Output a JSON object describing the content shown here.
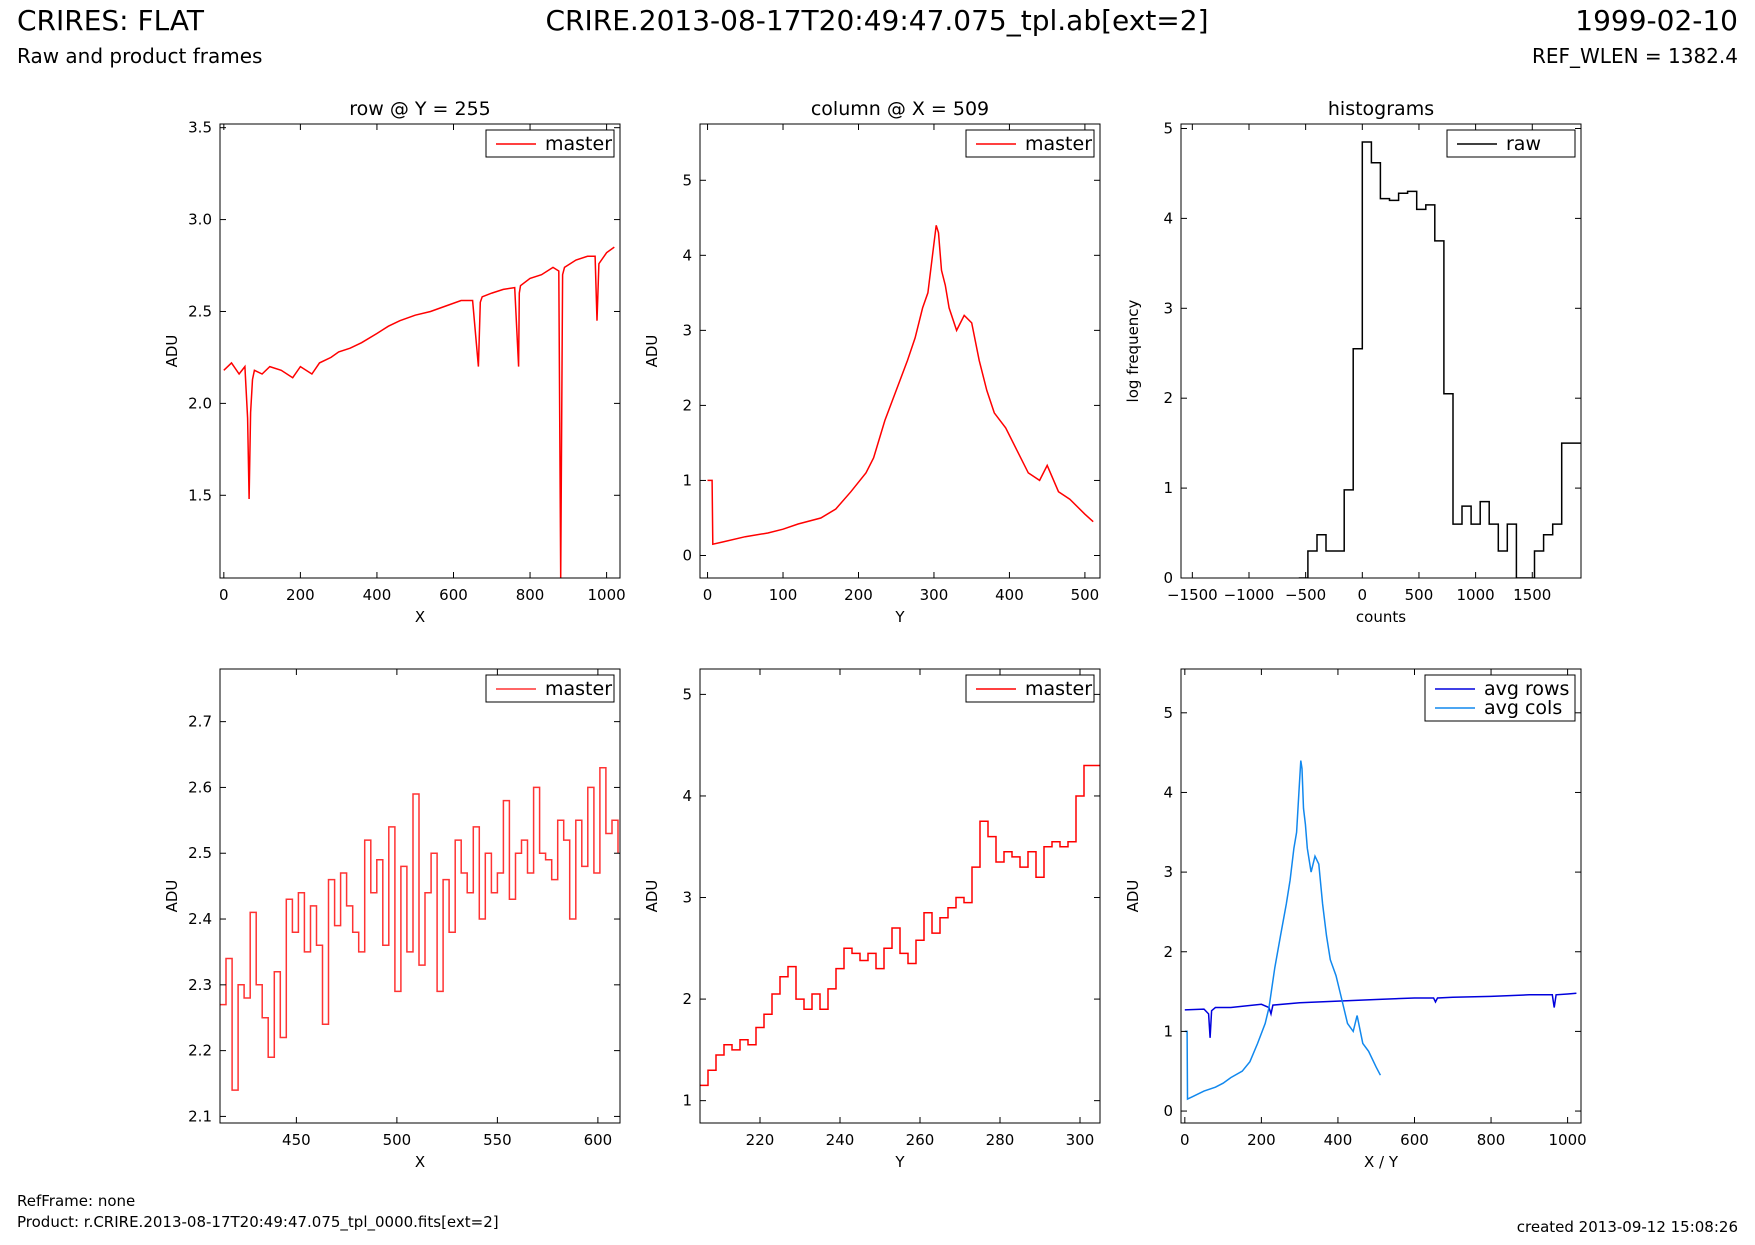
{
  "header": {
    "left_title": "CRIRES: FLAT",
    "left_subtitle": "Raw and product frames",
    "center_title": "CRIRE.2013-08-17T20:49:47.075_tpl.ab[ext=2]",
    "right_title": "1999-02-10",
    "right_subtitle": "REF_WLEN = 1382.4"
  },
  "footer": {
    "refframe": "RefFrame: none",
    "product": "Product: r.CRIRE.2013-08-17T20:49:47.075_tpl_0000.fits[ext=2]",
    "created": "created 2013-09-12 15:08:26"
  },
  "chart_data": [
    {
      "id": "row-full",
      "type": "line",
      "title": "row @ Y = 255",
      "xlabel": "X",
      "ylabel": "ADU",
      "xlim": [
        -10,
        1035
      ],
      "ylim": [
        1.05,
        3.52
      ],
      "xticks": [
        0,
        200,
        400,
        600,
        800,
        1000
      ],
      "yticks": [
        1.5,
        2.0,
        2.5,
        3.0,
        3.5
      ],
      "ytick_format": 1,
      "legend": "top-right",
      "series": [
        {
          "name": "master",
          "color": "#ff0000",
          "x": [
            0,
            20,
            40,
            55,
            62,
            66,
            70,
            75,
            80,
            100,
            120,
            150,
            180,
            200,
            230,
            250,
            280,
            300,
            330,
            360,
            400,
            430,
            460,
            500,
            540,
            580,
            620,
            650,
            665,
            670,
            675,
            700,
            730,
            760,
            770,
            772,
            775,
            800,
            830,
            860,
            875,
            880,
            885,
            890,
            920,
            950,
            970,
            975,
            980,
            1000,
            1020
          ],
          "y": [
            2.18,
            2.22,
            2.16,
            2.2,
            1.92,
            1.48,
            1.95,
            2.13,
            2.18,
            2.16,
            2.2,
            2.18,
            2.14,
            2.2,
            2.16,
            2.22,
            2.25,
            2.28,
            2.3,
            2.33,
            2.38,
            2.42,
            2.45,
            2.48,
            2.5,
            2.53,
            2.56,
            2.56,
            2.2,
            2.55,
            2.58,
            2.6,
            2.62,
            2.63,
            2.2,
            2.6,
            2.64,
            2.68,
            2.7,
            2.74,
            2.72,
            1.05,
            2.7,
            2.74,
            2.78,
            2.8,
            2.8,
            2.45,
            2.76,
            2.82,
            2.85
          ]
        }
      ]
    },
    {
      "id": "column-full",
      "type": "line",
      "title": "column @ X = 509",
      "xlabel": "Y",
      "ylabel": "ADU",
      "xlim": [
        -10,
        520
      ],
      "ylim": [
        -0.3,
        5.75
      ],
      "xticks": [
        0,
        100,
        200,
        300,
        400,
        500
      ],
      "yticks": [
        0,
        1,
        2,
        3,
        4,
        5
      ],
      "ytick_format": 0,
      "legend": "top-right",
      "series": [
        {
          "name": "master",
          "color": "#ff0000",
          "x": [
            0,
            6,
            7,
            20,
            50,
            80,
            100,
            120,
            150,
            170,
            190,
            210,
            220,
            235,
            250,
            265,
            275,
            285,
            292,
            298,
            303,
            306,
            310,
            315,
            320,
            330,
            340,
            350,
            360,
            370,
            380,
            395,
            410,
            425,
            440,
            450,
            465,
            480,
            500,
            511
          ],
          "y": [
            1.0,
            1.0,
            0.15,
            0.18,
            0.25,
            0.3,
            0.35,
            0.42,
            0.5,
            0.62,
            0.85,
            1.1,
            1.3,
            1.8,
            2.2,
            2.6,
            2.9,
            3.3,
            3.5,
            4.0,
            4.4,
            4.3,
            3.8,
            3.6,
            3.3,
            3.0,
            3.2,
            3.1,
            2.6,
            2.2,
            1.9,
            1.7,
            1.4,
            1.1,
            1.0,
            1.2,
            0.85,
            0.75,
            0.55,
            0.45
          ]
        }
      ]
    },
    {
      "id": "histograms",
      "type": "line",
      "title": "histograms",
      "xlabel": "counts",
      "ylabel": "log frequency",
      "xlim": [
        -1600,
        1930
      ],
      "ylim": [
        0,
        5.05
      ],
      "xticks": [
        -1500,
        -1000,
        -500,
        0,
        500,
        1000,
        1500
      ],
      "yticks": [
        0,
        1,
        2,
        3,
        4,
        5
      ],
      "ytick_format": 0,
      "legend": "top-right",
      "step": true,
      "series": [
        {
          "name": "raw",
          "color": "#000000",
          "x": [
            -560,
            -480,
            -400,
            -320,
            -240,
            -160,
            -80,
            0,
            80,
            160,
            240,
            320,
            400,
            480,
            560,
            640,
            720,
            800,
            880,
            960,
            1040,
            1120,
            1200,
            1280,
            1360,
            1440,
            1520,
            1600,
            1680,
            1760,
            1840,
            1930
          ],
          "y": [
            0.0,
            0.3,
            0.48,
            0.3,
            0.3,
            0.98,
            2.55,
            4.85,
            4.62,
            4.22,
            4.2,
            4.28,
            4.3,
            4.1,
            4.15,
            3.75,
            2.05,
            0.6,
            0.8,
            0.6,
            0.85,
            0.6,
            0.3,
            0.6,
            0.0,
            0.0,
            0.3,
            0.48,
            0.6,
            1.5,
            1.5,
            1.5
          ]
        }
      ]
    },
    {
      "id": "row-zoom",
      "type": "line",
      "title": "",
      "xlabel": "X",
      "ylabel": "ADU",
      "xlim": [
        412,
        611
      ],
      "ylim": [
        2.09,
        2.78
      ],
      "xticks": [
        450,
        500,
        550,
        600
      ],
      "yticks": [
        2.1,
        2.2,
        2.3,
        2.4,
        2.5,
        2.6,
        2.7
      ],
      "ytick_format": 1,
      "legend": "top-right",
      "step": true,
      "series": [
        {
          "name": "master",
          "color": "#ff3333",
          "x": [
            412,
            415,
            418,
            421,
            424,
            427,
            430,
            433,
            436,
            439,
            442,
            445,
            448,
            451,
            454,
            457,
            460,
            463,
            466,
            469,
            472,
            475,
            478,
            481,
            484,
            487,
            490,
            493,
            496,
            499,
            502,
            505,
            508,
            511,
            514,
            517,
            520,
            523,
            526,
            529,
            532,
            535,
            538,
            541,
            544,
            547,
            550,
            553,
            556,
            559,
            562,
            565,
            568,
            571,
            574,
            577,
            580,
            583,
            586,
            589,
            592,
            595,
            598,
            601,
            604,
            607,
            610
          ],
          "y": [
            2.27,
            2.34,
            2.14,
            2.3,
            2.28,
            2.41,
            2.3,
            2.25,
            2.19,
            2.32,
            2.22,
            2.43,
            2.38,
            2.44,
            2.35,
            2.42,
            2.36,
            2.24,
            2.46,
            2.39,
            2.47,
            2.42,
            2.38,
            2.35,
            2.52,
            2.44,
            2.49,
            2.36,
            2.54,
            2.29,
            2.48,
            2.35,
            2.59,
            2.33,
            2.44,
            2.5,
            2.29,
            2.46,
            2.38,
            2.52,
            2.47,
            2.44,
            2.54,
            2.4,
            2.5,
            2.44,
            2.47,
            2.58,
            2.43,
            2.5,
            2.52,
            2.47,
            2.6,
            2.5,
            2.49,
            2.46,
            2.55,
            2.52,
            2.4,
            2.55,
            2.48,
            2.6,
            2.47,
            2.63,
            2.53,
            2.55,
            2.5
          ]
        }
      ]
    },
    {
      "id": "column-zoom",
      "type": "line",
      "title": "",
      "xlabel": "Y",
      "ylabel": "ADU",
      "xlim": [
        205,
        305
      ],
      "ylim": [
        0.78,
        5.25
      ],
      "xticks": [
        220,
        240,
        260,
        280,
        300
      ],
      "yticks": [
        1,
        2,
        3,
        4,
        5
      ],
      "ytick_format": 0,
      "legend": "top-right",
      "step": true,
      "series": [
        {
          "name": "master",
          "color": "#ff0000",
          "x": [
            205,
            207,
            209,
            211,
            213,
            215,
            217,
            219,
            221,
            223,
            225,
            227,
            229,
            231,
            233,
            235,
            237,
            239,
            241,
            243,
            245,
            247,
            249,
            251,
            253,
            255,
            257,
            259,
            261,
            263,
            265,
            267,
            269,
            271,
            273,
            275,
            277,
            279,
            281,
            283,
            285,
            287,
            289,
            291,
            293,
            295,
            297,
            299,
            301,
            303,
            305
          ],
          "y": [
            1.15,
            1.3,
            1.45,
            1.55,
            1.5,
            1.6,
            1.55,
            1.72,
            1.85,
            2.05,
            2.22,
            2.32,
            2.0,
            1.9,
            2.05,
            1.9,
            2.1,
            2.3,
            2.5,
            2.45,
            2.38,
            2.45,
            2.3,
            2.5,
            2.7,
            2.45,
            2.35,
            2.58,
            2.85,
            2.65,
            2.8,
            2.9,
            3.0,
            2.95,
            3.3,
            3.75,
            3.6,
            3.35,
            3.45,
            3.4,
            3.3,
            3.45,
            3.2,
            3.5,
            3.55,
            3.5,
            3.55,
            4.0,
            4.3,
            4.3,
            4.3
          ]
        }
      ]
    },
    {
      "id": "averages",
      "type": "line",
      "title": "",
      "xlabel": "X / Y",
      "ylabel": "ADU",
      "xlim": [
        -10,
        1035
      ],
      "ylim": [
        -0.15,
        5.55
      ],
      "xticks": [
        0,
        200,
        400,
        600,
        800,
        1000
      ],
      "yticks": [
        0,
        1,
        2,
        3,
        4,
        5
      ],
      "ytick_format": 0,
      "legend": "top-right",
      "series": [
        {
          "name": "avg rows",
          "color": "#0000dd",
          "x": [
            0,
            50,
            62,
            66,
            70,
            80,
            120,
            200,
            220,
            225,
            230,
            300,
            400,
            500,
            600,
            650,
            655,
            660,
            700,
            800,
            900,
            960,
            965,
            970,
            1000,
            1023
          ],
          "y": [
            1.27,
            1.28,
            1.22,
            0.92,
            1.26,
            1.3,
            1.3,
            1.34,
            1.3,
            1.22,
            1.33,
            1.36,
            1.38,
            1.4,
            1.42,
            1.42,
            1.37,
            1.42,
            1.43,
            1.44,
            1.46,
            1.46,
            1.3,
            1.46,
            1.47,
            1.48
          ]
        },
        {
          "name": "avg cols",
          "color": "#1188ee",
          "x": [
            0,
            6,
            7,
            20,
            50,
            80,
            100,
            120,
            150,
            170,
            190,
            210,
            220,
            235,
            250,
            265,
            275,
            285,
            292,
            298,
            303,
            306,
            310,
            315,
            320,
            330,
            340,
            350,
            360,
            370,
            380,
            395,
            410,
            425,
            440,
            450,
            465,
            480,
            500,
            511
          ],
          "y": [
            1.0,
            1.0,
            0.15,
            0.18,
            0.25,
            0.3,
            0.35,
            0.42,
            0.5,
            0.62,
            0.85,
            1.1,
            1.3,
            1.8,
            2.2,
            2.6,
            2.9,
            3.3,
            3.5,
            4.0,
            4.4,
            4.3,
            3.8,
            3.6,
            3.3,
            3.0,
            3.2,
            3.1,
            2.6,
            2.2,
            1.9,
            1.7,
            1.4,
            1.1,
            1.0,
            1.2,
            0.85,
            0.75,
            0.55,
            0.45
          ]
        }
      ]
    }
  ]
}
